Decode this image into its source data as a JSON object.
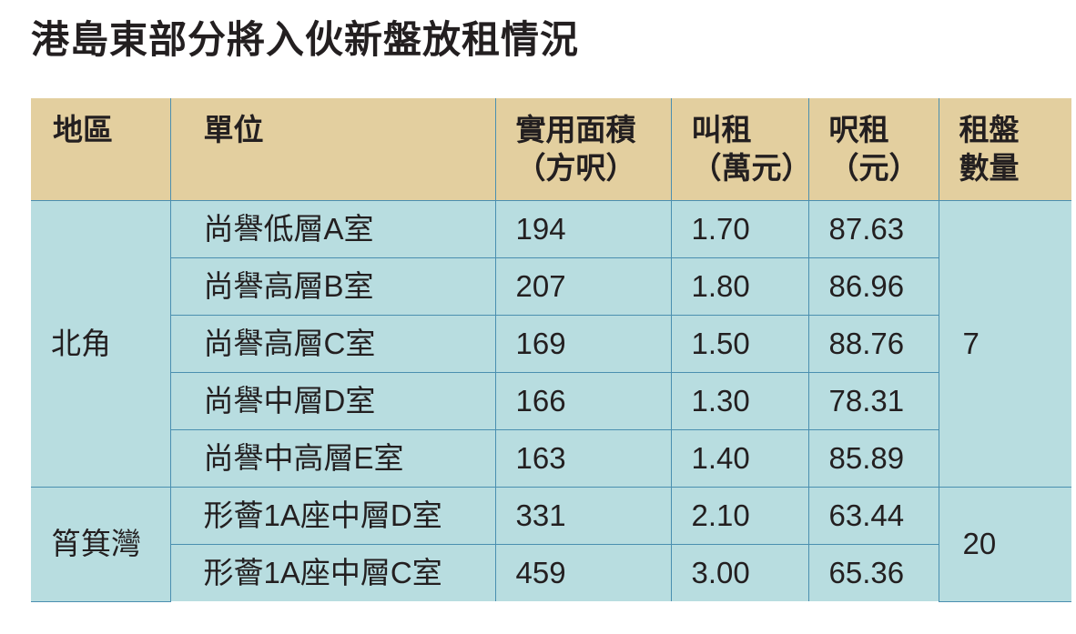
{
  "title": "港島東部分將入伙新盤放租情況",
  "headers": {
    "district": "地區",
    "unit": "單位",
    "area_1": "實用面積",
    "area_2": "（方呎）",
    "rent_1": "叫租",
    "rent_2": "（萬元）",
    "psf_1": "呎租",
    "psf_2": "（元）",
    "count_1": "租盤",
    "count_2": "數量"
  },
  "groups": [
    {
      "district": "北角",
      "count": "7",
      "rows": [
        {
          "unit": "尚譽低層A室",
          "area": "194",
          "rent": "1.70",
          "psf": "87.63"
        },
        {
          "unit": "尚譽高層B室",
          "area": "207",
          "rent": "1.80",
          "psf": "86.96"
        },
        {
          "unit": "尚譽高層C室",
          "area": "169",
          "rent": "1.50",
          "psf": "88.76"
        },
        {
          "unit": "尚譽中層D室",
          "area": "166",
          "rent": "1.30",
          "psf": "78.31"
        },
        {
          "unit": "尚譽中高層E室",
          "area": "163",
          "rent": "1.40",
          "psf": "85.89"
        }
      ]
    },
    {
      "district": "筲箕灣",
      "count": "20",
      "rows": [
        {
          "unit": "形薈1A座中層D室",
          "area": "331",
          "rent": "2.10",
          "psf": "63.44"
        },
        {
          "unit": "形薈1A座中層C室",
          "area": "459",
          "rent": "3.00",
          "psf": "65.36"
        }
      ]
    }
  ],
  "colors": {
    "header_bg": "#e3cf9f",
    "body_bg": "#b8dde0",
    "grid_line": "#4a8fb0"
  }
}
